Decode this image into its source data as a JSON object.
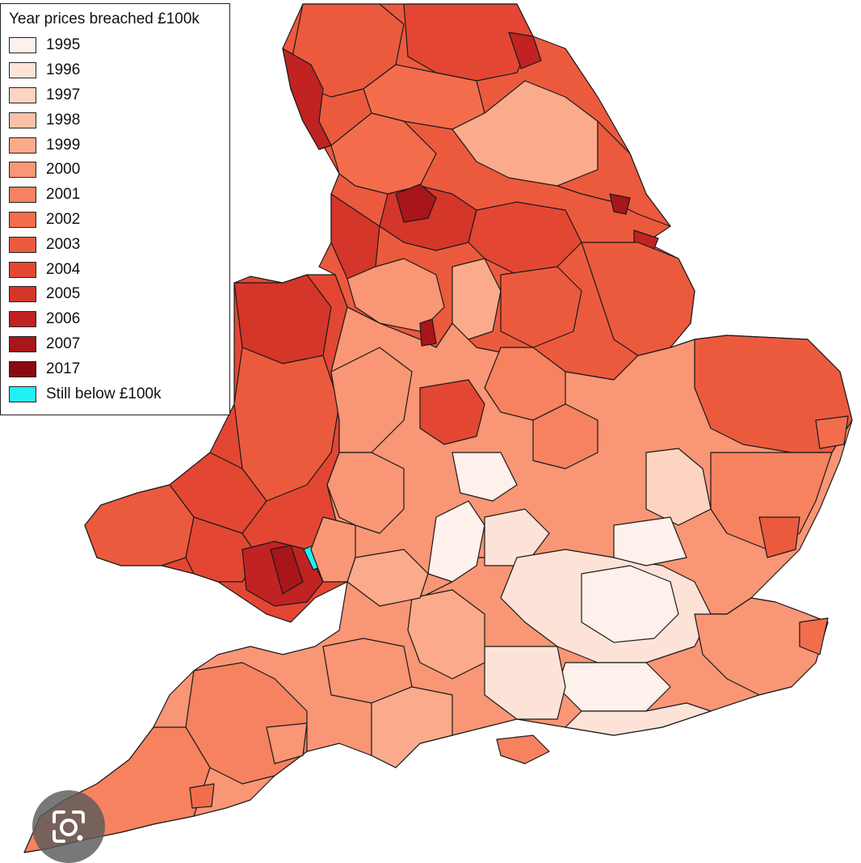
{
  "legend": {
    "title": "Year prices breached £100k",
    "items": [
      {
        "label": "1995",
        "color": "#fef0ea"
      },
      {
        "label": "1996",
        "color": "#fde3d7"
      },
      {
        "label": "1997",
        "color": "#fcd4c1"
      },
      {
        "label": "1998",
        "color": "#fcc0a6"
      },
      {
        "label": "1999",
        "color": "#fbab8b"
      },
      {
        "label": "2000",
        "color": "#f99675"
      },
      {
        "label": "2001",
        "color": "#f7825f"
      },
      {
        "label": "2002",
        "color": "#f36d4d"
      },
      {
        "label": "2003",
        "color": "#ec5a3e"
      },
      {
        "label": "2004",
        "color": "#e34733"
      },
      {
        "label": "2005",
        "color": "#d4362a"
      },
      {
        "label": "2006",
        "color": "#c02322"
      },
      {
        "label": "2007",
        "color": "#a8161b"
      },
      {
        "label": "2017",
        "color": "#8a0a12"
      },
      {
        "label": "Still below £100k",
        "color": "#22f0f5"
      }
    ]
  },
  "overlay": {
    "icon": "google-lens-icon"
  }
}
